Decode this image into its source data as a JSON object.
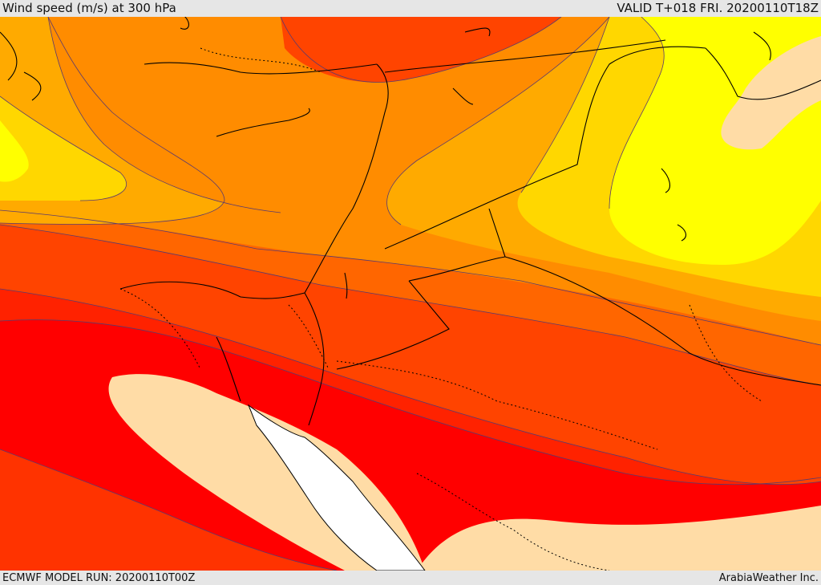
{
  "header": {
    "title": "Wind speed (m/s) at 300 hPa",
    "valid": "VALID T+018 FRI. 20200110T18Z"
  },
  "footer": {
    "model_run": "ECMWF MODEL RUN: 20200110T00Z",
    "credit": "ArabiaWeather Inc."
  },
  "palette": {
    "white": "#ffffff",
    "tan": "#ffdca6",
    "yellow": "#ffff00",
    "yellow_orange": "#ffd700",
    "orange_light": "#ffaa00",
    "orange": "#ff8c00",
    "orange_dark": "#ff6600",
    "red_orange": "#ff4400",
    "red": "#ff1a00",
    "pure_red": "#ff0000",
    "contour": "#5a3a6e",
    "coast": "#000000"
  }
}
